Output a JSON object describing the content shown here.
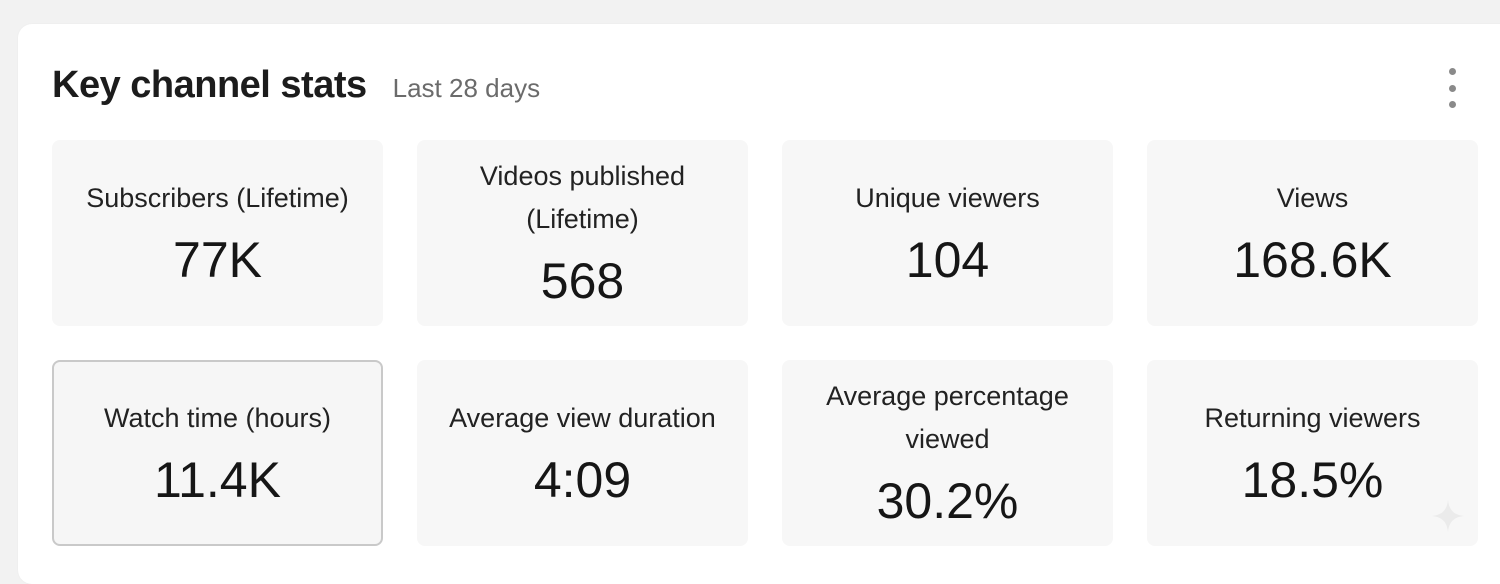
{
  "header": {
    "title": "Key channel stats",
    "subtitle": "Last 28 days",
    "more_icon": "more-vert-icon"
  },
  "tiles": [
    {
      "label": "Subscribers (Lifetime)",
      "value": "77K"
    },
    {
      "label": "Videos published (Lifetime)",
      "value": "568"
    },
    {
      "label": "Unique viewers",
      "value": "104"
    },
    {
      "label": "Views",
      "value": "168.6K"
    },
    {
      "label": "Watch time (hours)",
      "value": "11.4K"
    },
    {
      "label": "Average view duration",
      "value": "4:09"
    },
    {
      "label": "Average percentage viewed",
      "value": "30.2%"
    },
    {
      "label": "Returning viewers",
      "value": "18.5%"
    }
  ],
  "colors": {
    "page_bg": "#f2f2f2",
    "card_bg": "#ffffff",
    "tile_bg": "#f7f7f7",
    "selected_border": "#c9c9c9"
  }
}
